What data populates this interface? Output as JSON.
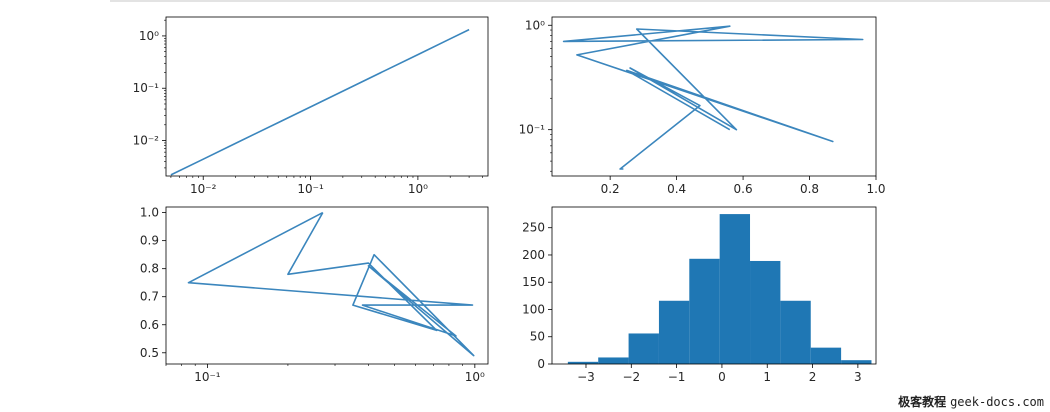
{
  "colors": {
    "line": "#3b86bd",
    "bar": "#1f77b4",
    "axis": "#000000"
  },
  "watermark": {
    "brand": "极客教程",
    "site": "geek-docs.com"
  },
  "chart_data": [
    {
      "type": "line",
      "subplot": "top-left",
      "xscale": "log",
      "yscale": "log",
      "xlim": [
        0.0045,
        4.5
      ],
      "ylim": [
        0.0021,
        2.3
      ],
      "x": [
        0.005,
        0.01,
        0.02,
        0.05,
        0.1,
        0.2,
        0.5,
        1.0,
        2.0,
        3.0
      ],
      "y": [
        0.0022,
        0.0044,
        0.0088,
        0.022,
        0.044,
        0.088,
        0.22,
        0.44,
        0.88,
        1.32
      ],
      "xticks": [
        {
          "v": 0.01,
          "label": "10⁻²"
        },
        {
          "v": 0.1,
          "label": "10⁻¹"
        },
        {
          "v": 1,
          "label": "10⁰"
        }
      ],
      "yticks": [
        {
          "v": 0.01,
          "label": "10⁻²"
        },
        {
          "v": 0.1,
          "label": "10⁻¹"
        },
        {
          "v": 1,
          "label": "10⁰"
        }
      ]
    },
    {
      "type": "line",
      "subplot": "top-right",
      "xscale": "linear",
      "yscale": "log",
      "xlim": [
        0.025,
        1.0
      ],
      "ylim": [
        0.036,
        1.2
      ],
      "x": [
        0.56,
        0.25,
        0.87,
        0.1,
        0.56,
        0.06,
        0.96,
        0.28,
        0.58,
        0.26,
        0.47,
        0.23,
        0.24
      ],
      "y": [
        0.1,
        0.37,
        0.077,
        0.52,
        0.98,
        0.7,
        0.73,
        0.92,
        0.1,
        0.39,
        0.17,
        0.042,
        0.042
      ],
      "xticks": [
        {
          "v": 0.2,
          "label": "0.2"
        },
        {
          "v": 0.4,
          "label": "0.4"
        },
        {
          "v": 0.6,
          "label": "0.6"
        },
        {
          "v": 0.8,
          "label": "0.8"
        },
        {
          "v": 1.0,
          "label": "1.0"
        }
      ],
      "yticks": [
        {
          "v": 0.1,
          "label": "10⁻¹"
        },
        {
          "v": 1,
          "label": "10⁰"
        }
      ]
    },
    {
      "type": "line",
      "subplot": "bottom-left",
      "xscale": "log",
      "yscale": "linear",
      "xlim": [
        0.07,
        1.12
      ],
      "ylim": [
        0.46,
        1.02
      ],
      "x": [
        0.27,
        0.085,
        0.98,
        0.38,
        0.85,
        0.4,
        0.99,
        0.42,
        0.35,
        0.72,
        0.4,
        0.2,
        0.27
      ],
      "y": [
        1.0,
        0.75,
        0.67,
        0.67,
        0.56,
        0.81,
        0.49,
        0.85,
        0.67,
        0.58,
        0.82,
        0.78,
        1.0
      ],
      "xticks": [
        {
          "v": 0.1,
          "label": "10⁻¹"
        },
        {
          "v": 1,
          "label": "10⁰"
        }
      ],
      "yticks": [
        {
          "v": 0.5,
          "label": "0.5"
        },
        {
          "v": 0.6,
          "label": "0.6"
        },
        {
          "v": 0.7,
          "label": "0.7"
        },
        {
          "v": 0.8,
          "label": "0.8"
        },
        {
          "v": 0.9,
          "label": "0.9"
        },
        {
          "v": 1.0,
          "label": "1.0"
        }
      ]
    },
    {
      "type": "bar",
      "subplot": "bottom-right",
      "xlim": [
        -3.75,
        3.4
      ],
      "ylim": [
        0,
        288
      ],
      "bin_edges": [
        -3.4,
        -2.73,
        -2.06,
        -1.39,
        -0.72,
        -0.05,
        0.62,
        1.29,
        1.96,
        2.63,
        3.3
      ],
      "values": [
        4,
        12,
        56,
        116,
        193,
        275,
        189,
        116,
        30,
        7
      ],
      "xticks": [
        {
          "v": -3,
          "label": "−3"
        },
        {
          "v": -2,
          "label": "−2"
        },
        {
          "v": -1,
          "label": "−1"
        },
        {
          "v": 0,
          "label": "0"
        },
        {
          "v": 1,
          "label": "1"
        },
        {
          "v": 2,
          "label": "2"
        },
        {
          "v": 3,
          "label": "3"
        }
      ],
      "yticks": [
        {
          "v": 0,
          "label": "0"
        },
        {
          "v": 50,
          "label": "50"
        },
        {
          "v": 100,
          "label": "100"
        },
        {
          "v": 150,
          "label": "150"
        },
        {
          "v": 200,
          "label": "200"
        },
        {
          "v": 250,
          "label": "250"
        }
      ]
    }
  ]
}
